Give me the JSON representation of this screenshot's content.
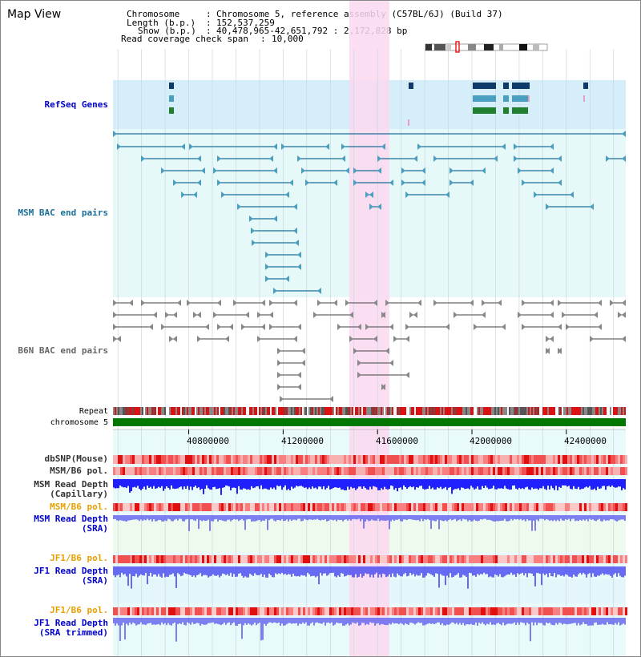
{
  "view": {
    "title": "Map View",
    "header": {
      "chromosome_key": "Chromosome",
      "chromosome_val": "Chromosome 5, reference assembly (C57BL/6J) (Build 37)",
      "length_key": "Length (b.p.)",
      "length_val": "152,537,259",
      "show_key": "Show (b.p.)",
      "show_val": "40,478,965-42,651,792 : 2,172,828 bp",
      "coverage_key": "Read coverage check span",
      "coverage_val": "10,000"
    }
  },
  "axis": {
    "start": 40478965,
    "end": 42651792,
    "ticks": [
      40800000,
      41200000,
      41600000,
      42000000,
      42400000
    ],
    "tick_labels": [
      "40800000",
      "41200000",
      "41600000",
      "42000000",
      "42400000"
    ],
    "highlight": [
      41480000,
      41650000
    ]
  },
  "tracks": {
    "refseq": {
      "label": "RefSeq Genes",
      "color": "#0000cc"
    },
    "msm_bac": {
      "label": "MSM BAC end pairs",
      "color": "#1a6e9a"
    },
    "b6n_bac": {
      "label": "B6N BAC end pairs",
      "color": "#666666"
    },
    "repeat": {
      "label": "Repeat"
    },
    "chromosome": {
      "label": "chromosome 5",
      "color": "#007700"
    },
    "dbsnp": {
      "label": "dbSNP(Mouse)"
    },
    "msm_b6_pol_1": {
      "label": "MSM/B6 pol."
    },
    "msm_depth_cap": {
      "label": "MSM Read Depth\n(Capillary)",
      "color": "#0000ff"
    },
    "msm_b6_pol_2": {
      "label": "MSM/B6 pol.",
      "color": "#e8a000"
    },
    "msm_depth_sra": {
      "label": "MSM Read Depth\n(SRA)",
      "color": "#0000cc"
    },
    "jf1_b6_pol_1": {
      "label": "JF1/B6 pol.",
      "color": "#e8a000"
    },
    "jf1_depth_sra": {
      "label": "JF1 Read Depth\n(SRA)",
      "color": "#0000cc"
    },
    "jf1_b6_pol_2": {
      "label": "JF1/B6 pol.",
      "color": "#e8a000"
    },
    "jf1_depth_trim": {
      "label": "JF1 Read Depth\n(SRA trimmed)",
      "color": "#0000cc"
    }
  }
}
